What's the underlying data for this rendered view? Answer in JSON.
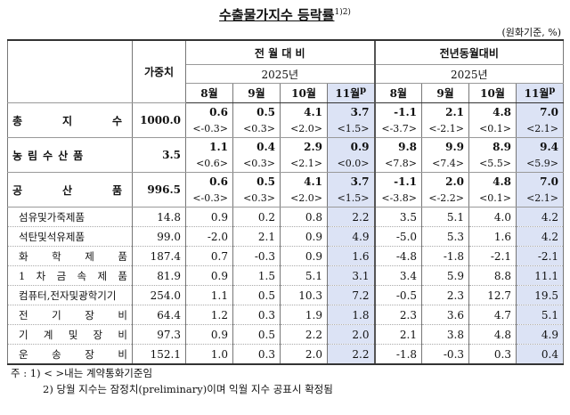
{
  "title": "수출물가지수 등락률",
  "title_note": "1)2)",
  "unit": "(원화기준, %)",
  "header": {
    "weight": "가중치",
    "groups": [
      {
        "label": "전 월 대 비",
        "year": "2025년",
        "months": [
          "8월",
          "9월",
          "10월",
          "11월"
        ],
        "latest_mark": "p"
      },
      {
        "label": "전년동월대비",
        "year": "2025년",
        "months": [
          "8월",
          "9월",
          "10월",
          "11월"
        ],
        "latest_mark": "p"
      }
    ]
  },
  "rows": [
    {
      "label": "총 지 수",
      "weight": "1000.0",
      "values": [
        "0.6",
        "0.5",
        "4.1",
        "3.7",
        "-1.1",
        "2.1",
        "4.8",
        "7.0"
      ],
      "contract_values": [
        "<-0.3>",
        "<0.3>",
        "<2.0>",
        "<1.5>",
        "<-3.7>",
        "<-2.1>",
        "<0.1>",
        "<2.1>"
      ]
    },
    {
      "label": "농림수산품",
      "weight": "3.5",
      "values": [
        "1.1",
        "0.4",
        "2.9",
        "0.9",
        "9.8",
        "9.9",
        "8.9",
        "9.4"
      ],
      "contract_values": [
        "<0.6>",
        "<0.3>",
        "<2.1>",
        "<0.0>",
        "<7.8>",
        "<7.4>",
        "<5.5>",
        "<5.9>"
      ]
    },
    {
      "label": "공 산 품",
      "weight": "996.5",
      "values": [
        "0.6",
        "0.5",
        "4.1",
        "3.7",
        "-1.1",
        "2.0",
        "4.8",
        "7.0"
      ],
      "contract_values": [
        "<-0.3>",
        "<0.3>",
        "<2.0>",
        "<1.5>",
        "<-3.8>",
        "<-2.2>",
        "<0.1>",
        "<2.1>"
      ]
    },
    {
      "label": "섬유및가죽제품",
      "weight": "14.8",
      "values": [
        "0.9",
        "0.2",
        "0.8",
        "2.2",
        "3.5",
        "5.1",
        "4.0",
        "4.2"
      ]
    },
    {
      "label": "석탄및석유제품",
      "weight": "99.0",
      "values": [
        "-2.0",
        "2.1",
        "0.9",
        "4.9",
        "-5.0",
        "5.3",
        "1.6",
        "4.2"
      ]
    },
    {
      "label": "화 학 제 품",
      "weight": "187.4",
      "values": [
        "0.7",
        "-0.3",
        "0.9",
        "1.6",
        "-4.8",
        "-1.8",
        "-2.1",
        "-2.1"
      ]
    },
    {
      "label": "1 차 금 속 제 품",
      "weight": "81.9",
      "values": [
        "0.9",
        "1.5",
        "5.1",
        "3.1",
        "3.4",
        "5.9",
        "8.8",
        "11.1"
      ]
    },
    {
      "label": "컴퓨터,전자및광학기기",
      "weight": "254.0",
      "values": [
        "1.1",
        "0.5",
        "10.3",
        "7.2",
        "-0.5",
        "2.3",
        "12.7",
        "19.5"
      ]
    },
    {
      "label": "전 기 장 비",
      "weight": "64.4",
      "values": [
        "1.2",
        "0.3",
        "1.9",
        "1.8",
        "2.3",
        "3.6",
        "4.7",
        "5.1"
      ]
    },
    {
      "label": "기 계 및 장 비",
      "weight": "97.3",
      "values": [
        "0.9",
        "0.5",
        "2.2",
        "2.0",
        "2.1",
        "3.8",
        "4.8",
        "4.9"
      ]
    },
    {
      "label": "운 송 장 비",
      "weight": "152.1",
      "values": [
        "1.0",
        "0.3",
        "2.0",
        "2.2",
        "-1.8",
        "-0.3",
        "0.3",
        "0.4"
      ]
    }
  ],
  "notes": {
    "prefix": "주 :",
    "items": [
      "1) < >내는 계약통화기준임",
      "2) 당월 지수는 잠정치(preliminary)이며 익월 지수 공표시 확정됨"
    ]
  }
}
